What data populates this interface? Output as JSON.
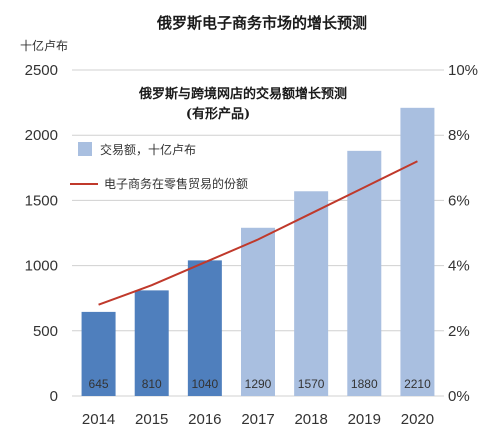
{
  "chart_data": {
    "type": "bar",
    "title": "俄罗斯电子商务市场的增长预测",
    "subtitle": "俄罗斯与跨境网店的交易额增长预测",
    "subtitle_note": "(有形产品)",
    "y_unit_label": "十亿卢布",
    "categories": [
      "2014",
      "2015",
      "2016",
      "2017",
      "2018",
      "2019",
      "2020"
    ],
    "series": [
      {
        "name": "交易额，十亿卢布",
        "type": "bar",
        "axis": "left",
        "values": [
          645,
          810,
          1040,
          1290,
          1570,
          1880,
          2210
        ],
        "value_labels": [
          "645",
          "810",
          "1040",
          "1290",
          "1570",
          "1880",
          "2210"
        ]
      },
      {
        "name": "电子商务在零售贸易的份额",
        "type": "line",
        "axis": "right",
        "values": [
          2.8,
          3.4,
          4.1,
          4.8,
          5.6,
          6.4,
          7.2
        ]
      }
    ],
    "ylim": [
      0,
      2500
    ],
    "y_ticks": [
      "0",
      "500",
      "1000",
      "1500",
      "2000",
      "2500"
    ],
    "y2lim": [
      0,
      10
    ],
    "y2_ticks": [
      "0%",
      "2%",
      "4%",
      "6%",
      "8%",
      "10%"
    ],
    "grid": true,
    "legend_position": "top-left (inside plot)",
    "colors": {
      "bar_dark": "#4f7fbd",
      "bar_light": "#a9bfe0",
      "line": "#c0392b",
      "grid": "#d0d0d0"
    }
  }
}
